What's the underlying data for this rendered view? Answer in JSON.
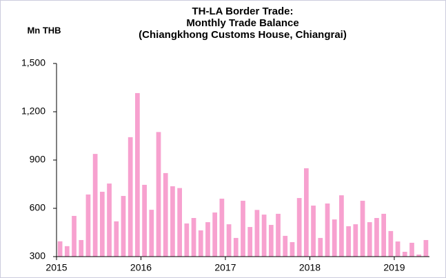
{
  "chart_data": {
    "type": "bar",
    "title": [
      "TH-LA Border Trade:",
      "Monthly Trade Balance",
      "(Chiangkhong Customs House, Chiangrai)"
    ],
    "y_label": "Mn THB",
    "categories": [
      "2015",
      null,
      null,
      null,
      null,
      null,
      null,
      null,
      null,
      null,
      null,
      null,
      "2016",
      null,
      null,
      null,
      null,
      null,
      null,
      null,
      null,
      null,
      null,
      null,
      "2017",
      null,
      null,
      null,
      null,
      null,
      null,
      null,
      null,
      null,
      null,
      null,
      "2018",
      null,
      null,
      null,
      null,
      null,
      null,
      null,
      null,
      null,
      null,
      null,
      "2019",
      null,
      null,
      null,
      null
    ],
    "values": [
      395,
      365,
      553,
      403,
      686,
      938,
      703,
      754,
      519,
      677,
      1042,
      1316,
      746,
      591,
      1074,
      819,
      737,
      726,
      506,
      540,
      463,
      514,
      574,
      660,
      501,
      416,
      647,
      484,
      590,
      561,
      497,
      566,
      429,
      390,
      664,
      849,
      617,
      416,
      630,
      531,
      681,
      489,
      501,
      647,
      514,
      540,
      566,
      459,
      394,
      330,
      386,
      313,
      403
    ],
    "color": "#f7a1cf",
    "ylim": [
      300,
      1500
    ],
    "yticks": [
      300,
      600,
      900,
      {
        "value": 1200,
        "label": "1,200"
      },
      {
        "value": 1500,
        "label": "1,500"
      }
    ],
    "grid": false
  }
}
